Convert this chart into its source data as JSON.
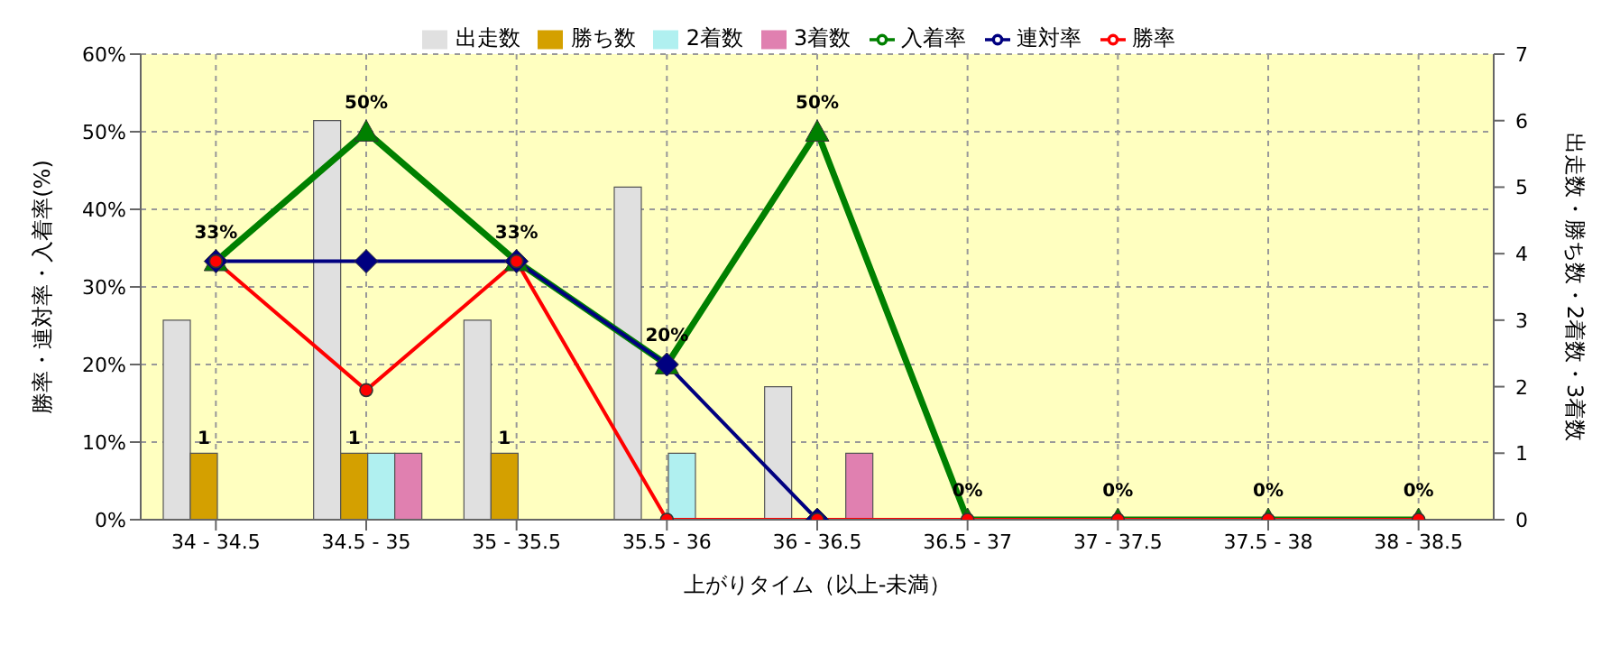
{
  "chart_data": {
    "type": "bar",
    "categories": [
      "34 - 34.5",
      "34.5 - 35",
      "35 - 35.5",
      "35.5 - 36",
      "36 - 36.5",
      "36.5 - 37",
      "37 - 37.5",
      "37.5 - 38",
      "38 - 38.5"
    ],
    "xlabel": "上がりタイム（以上-未満）",
    "ylabel": "勝率・連対率・入着率(%)",
    "y2label": "出走数・勝ち数・2着数・3着数",
    "ylim": [
      0,
      60
    ],
    "yticks": [
      {
        "value": 0,
        "label": "0%"
      },
      {
        "value": 10,
        "label": "10%"
      },
      {
        "value": 20,
        "label": "20%"
      },
      {
        "value": 30,
        "label": "30%"
      },
      {
        "value": 40,
        "label": "40%"
      },
      {
        "value": 50,
        "label": "50%"
      },
      {
        "value": 60,
        "label": "60%"
      }
    ],
    "y2lim": [
      0,
      7
    ],
    "y2ticks": [
      0,
      1,
      2,
      3,
      4,
      5,
      6,
      7
    ],
    "grid": true,
    "legend": "top",
    "series": [
      {
        "name": "出走数",
        "type": "bar",
        "axis": "y2",
        "color": "#e0e0e0",
        "values": [
          3,
          6,
          3,
          5,
          2,
          0,
          0,
          0,
          0
        ]
      },
      {
        "name": "勝ち数",
        "type": "bar",
        "axis": "y2",
        "color": "#d4a000",
        "values": [
          1,
          1,
          1,
          0,
          0,
          0,
          0,
          0,
          0
        ],
        "value_labels": [
          "1",
          "1",
          "1",
          null,
          null,
          null,
          null,
          null,
          null
        ]
      },
      {
        "name": "2着数",
        "type": "bar",
        "axis": "y2",
        "color": "#b0f0f0",
        "values": [
          0,
          1,
          0,
          1,
          0,
          0,
          0,
          0,
          0
        ]
      },
      {
        "name": "3着数",
        "type": "bar",
        "axis": "y2",
        "color": "#e080b0",
        "values": [
          0,
          1,
          0,
          0,
          1,
          0,
          0,
          0,
          0
        ]
      },
      {
        "name": "入着率",
        "type": "line",
        "axis": "y",
        "color": "#008000",
        "marker": "triangle",
        "values": [
          33.3,
          50,
          33.3,
          20,
          50,
          0,
          0,
          0,
          0
        ],
        "value_labels": [
          "33%",
          "50%",
          "33%",
          "20%",
          "50%",
          "0%",
          "0%",
          "0%",
          "0%"
        ]
      },
      {
        "name": "連対率",
        "type": "line",
        "axis": "y",
        "color": "#000080",
        "marker": "diamond",
        "values": [
          33.3,
          33.3,
          33.3,
          20,
          0,
          null,
          null,
          null,
          null
        ]
      },
      {
        "name": "勝率",
        "type": "line",
        "axis": "y",
        "color": "#ff0000",
        "marker": "circle",
        "values": [
          33.3,
          16.7,
          33.3,
          0,
          0,
          0,
          0,
          0,
          0
        ]
      }
    ]
  }
}
